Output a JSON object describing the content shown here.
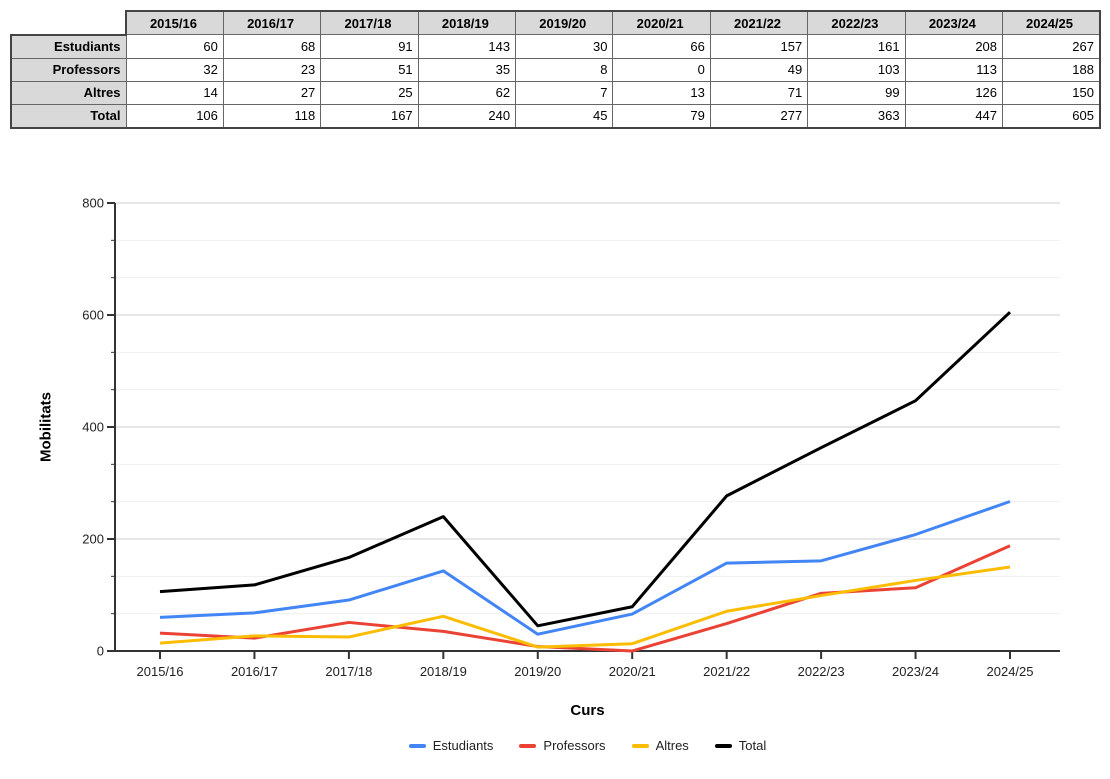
{
  "table": {
    "corner_label": "",
    "columns": [
      "2015/16",
      "2016/17",
      "2017/18",
      "2018/19",
      "2019/20",
      "2020/21",
      "2021/22",
      "2022/23",
      "2023/24",
      "2024/25"
    ],
    "rows": [
      {
        "label": "Estudiants",
        "values": [
          60,
          68,
          91,
          143,
          30,
          66,
          157,
          161,
          208,
          267
        ]
      },
      {
        "label": "Professors",
        "values": [
          32,
          23,
          51,
          35,
          8,
          0,
          49,
          103,
          113,
          188
        ]
      },
      {
        "label": "Altres",
        "values": [
          14,
          27,
          25,
          62,
          7,
          13,
          71,
          99,
          126,
          150
        ]
      },
      {
        "label": "Total",
        "values": [
          106,
          118,
          167,
          240,
          45,
          79,
          277,
          363,
          447,
          605
        ]
      }
    ],
    "header_bg": "#d9d9d9"
  },
  "chart_data": {
    "type": "line",
    "title": "",
    "xlabel": "Curs",
    "ylabel": "Mobilitats",
    "categories": [
      "2015/16",
      "2016/17",
      "2017/18",
      "2018/19",
      "2019/20",
      "2020/21",
      "2021/22",
      "2022/23",
      "2023/24",
      "2024/25"
    ],
    "series": [
      {
        "name": "Estudiants",
        "color": "#4285f4",
        "values": [
          60,
          68,
          91,
          143,
          30,
          66,
          157,
          161,
          208,
          267
        ]
      },
      {
        "name": "Professors",
        "color": "#ea4335",
        "values": [
          32,
          23,
          51,
          35,
          8,
          0,
          49,
          103,
          113,
          188
        ]
      },
      {
        "name": "Altres",
        "color": "#fbbc04",
        "values": [
          14,
          27,
          25,
          62,
          7,
          13,
          71,
          99,
          126,
          150
        ]
      },
      {
        "name": "Total",
        "color": "#000000",
        "values": [
          106,
          118,
          167,
          240,
          45,
          79,
          277,
          363,
          447,
          605
        ]
      }
    ],
    "ylim": [
      0,
      800
    ],
    "y_tick_labels": [
      "0",
      "200",
      "400",
      "600",
      "800"
    ],
    "y_major_step": 200,
    "y_minor_divisions": 3,
    "grid": true,
    "legend_position": "bottom",
    "colors": {
      "major_grid": "#cccccc",
      "minor_grid": "#efefef",
      "axis": "#333333",
      "tick_label": "#222222"
    }
  }
}
